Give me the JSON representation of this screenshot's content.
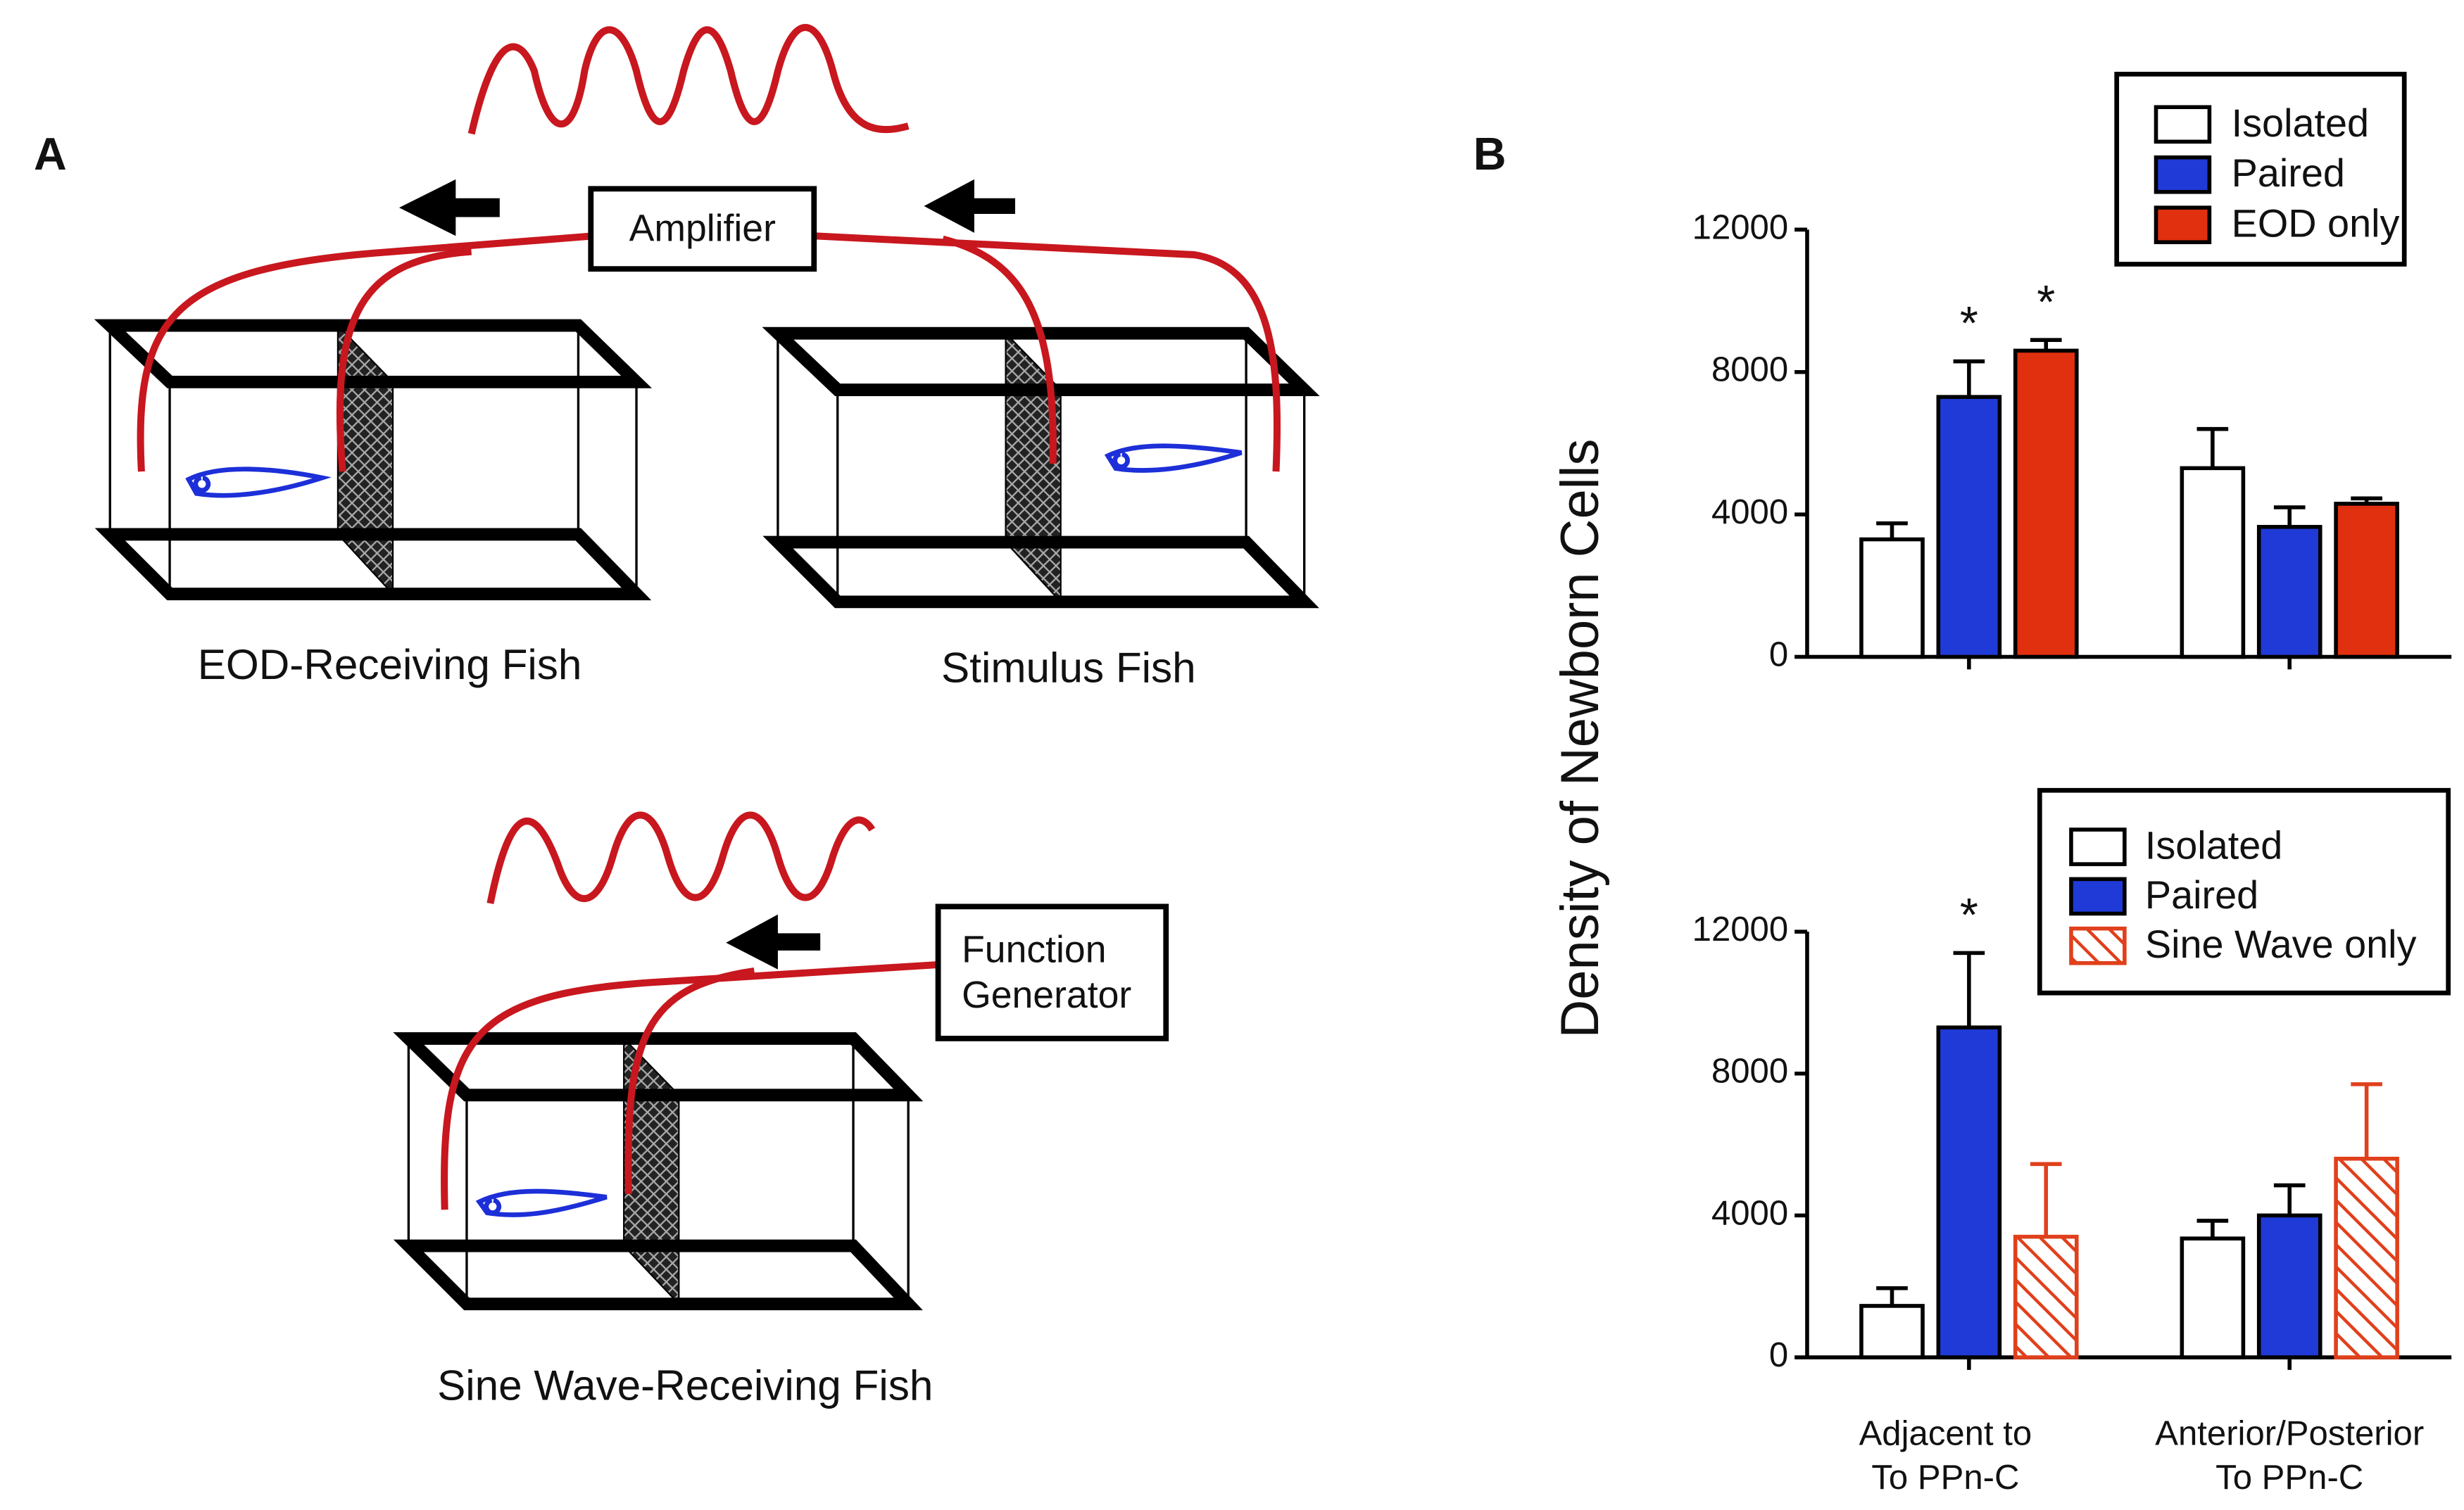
{
  "panel_labels": [
    "A",
    "B"
  ],
  "diagram": {
    "amplifier": "Amplifier",
    "receiver_label": "EOD-Receiving Fish",
    "stimulus_label": "Stimulus Fish",
    "generator": [
      "Function",
      "Generator"
    ],
    "sine_receiver_label": "Sine Wave-Receiving Fish"
  },
  "ylabel": "Density of Newborn Cells",
  "chart_data": [
    {
      "type": "bar",
      "categories": [
        null,
        null
      ],
      "ylim": [
        0,
        12000
      ],
      "yticks": [
        0,
        4000,
        8000,
        12000
      ],
      "series": [
        {
          "name": "Isolated",
          "color": "#ffffff",
          "values": [
            3300,
            5300
          ],
          "errors": [
            450,
            1100
          ]
        },
        {
          "name": "Paired",
          "color": "#1f3ad6",
          "values": [
            7300,
            3650
          ],
          "errors": [
            1000,
            550
          ],
          "labels": [
            "*",
            null
          ]
        },
        {
          "name": "EOD only",
          "color": "#e0300f",
          "values": [
            8600,
            4300
          ],
          "errors": [
            300,
            150
          ],
          "labels": [
            "*",
            null
          ]
        }
      ]
    },
    {
      "type": "bar",
      "categories": [
        [
          "Adjacent to",
          "To PPn-C"
        ],
        [
          "Anterior/Posterior",
          "To PPn-C"
        ]
      ],
      "ylim": [
        0,
        12000
      ],
      "yticks": [
        0,
        4000,
        8000,
        12000
      ],
      "series": [
        {
          "name": "Isolated",
          "color": "#ffffff",
          "values": [
            1450,
            3350
          ],
          "errors": [
            500,
            500
          ]
        },
        {
          "name": "Paired",
          "color": "#1f3ad6",
          "values": [
            9300,
            4000
          ],
          "errors": [
            2100,
            850
          ],
          "labels": [
            "*",
            null
          ]
        },
        {
          "name": "Sine Wave only",
          "color": "#e0401c",
          "hatch": true,
          "values": [
            3400,
            5600
          ],
          "errors": [
            2050,
            2100
          ]
        }
      ]
    }
  ]
}
